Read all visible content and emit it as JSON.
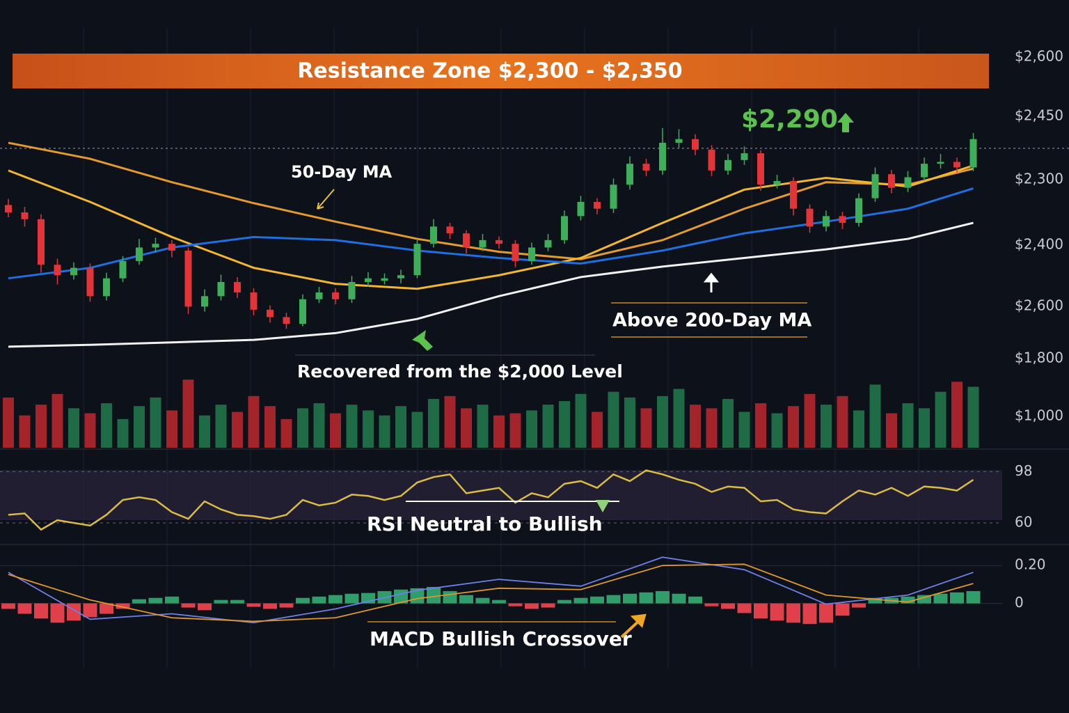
{
  "chart_data": [
    {
      "type": "candlestick",
      "annotations": {
        "resistance": "Resistance Zone $2,300 - $2,350",
        "price": "$2,290",
        "ma50": "50-Day MA",
        "above_ma200": "Above 200-Day MA",
        "recovered": "Recovered from the $2,000 Level"
      },
      "price_labels": [
        "$2,600",
        "$2,450",
        "$2,300",
        "$2,400",
        "$2,600",
        "$1,800",
        "$1,000"
      ],
      "ylim": [
        1940,
        2460
      ],
      "up_color": "#3fae5a",
      "down_color": "#e2353a",
      "candles": {
        "open": [
          2195,
          2183,
          2172,
          2098,
          2081,
          2093,
          2047,
          2076,
          2104,
          2126,
          2132,
          2121,
          2030,
          2047,
          2070,
          2053,
          2025,
          2013,
          2002,
          2042,
          2053,
          2042,
          2070,
          2072,
          2076,
          2081,
          2132,
          2160,
          2149,
          2126,
          2138,
          2132,
          2104,
          2126,
          2138,
          2177,
          2200,
          2189,
          2228,
          2262,
          2251,
          2296,
          2302,
          2285,
          2251,
          2268,
          2279,
          2228,
          2234,
          2189,
          2160,
          2177,
          2166,
          2206,
          2245,
          2223,
          2240,
          2262,
          2265,
          2256
        ],
        "high": [
          2205,
          2192,
          2180,
          2108,
          2102,
          2100,
          2085,
          2112,
          2140,
          2142,
          2138,
          2126,
          2058,
          2082,
          2078,
          2060,
          2032,
          2020,
          2050,
          2062,
          2060,
          2080,
          2086,
          2084,
          2090,
          2140,
          2172,
          2166,
          2154,
          2148,
          2144,
          2138,
          2134,
          2148,
          2186,
          2210,
          2206,
          2238,
          2274,
          2270,
          2320,
          2318,
          2310,
          2292,
          2278,
          2290,
          2284,
          2244,
          2240,
          2196,
          2186,
          2184,
          2214,
          2256,
          2252,
          2250,
          2272,
          2278,
          2272,
          2312
        ],
        "low": [
          2175,
          2160,
          2085,
          2066,
          2074,
          2038,
          2040,
          2070,
          2098,
          2118,
          2110,
          2018,
          2022,
          2040,
          2044,
          2016,
          2004,
          1994,
          1998,
          2036,
          2034,
          2036,
          2062,
          2066,
          2068,
          2076,
          2126,
          2140,
          2116,
          2120,
          2124,
          2094,
          2098,
          2120,
          2132,
          2170,
          2180,
          2182,
          2220,
          2242,
          2244,
          2288,
          2276,
          2242,
          2244,
          2260,
          2218,
          2222,
          2178,
          2150,
          2152,
          2156,
          2160,
          2200,
          2214,
          2216,
          2234,
          2254,
          2248,
          2250
        ],
        "close": [
          2183,
          2172,
          2098,
          2081,
          2093,
          2047,
          2076,
          2104,
          2126,
          2132,
          2121,
          2030,
          2047,
          2070,
          2053,
          2025,
          2013,
          2002,
          2042,
          2053,
          2042,
          2070,
          2076,
          2076,
          2081,
          2132,
          2160,
          2149,
          2126,
          2138,
          2132,
          2104,
          2126,
          2138,
          2177,
          2200,
          2189,
          2228,
          2262,
          2251,
          2296,
          2302,
          2285,
          2251,
          2268,
          2279,
          2228,
          2234,
          2189,
          2160,
          2177,
          2166,
          2206,
          2245,
          2223,
          2240,
          2262,
          2265,
          2256,
          2302
        ]
      },
      "series": [
        {
          "color": "#e39b2f",
          "x": [
            0,
            5,
            10,
            15,
            20,
            25,
            30,
            35,
            40,
            45,
            50,
            55,
            59
          ],
          "values": [
            2296,
            2270,
            2232,
            2198,
            2168,
            2140,
            2119,
            2107,
            2138,
            2189,
            2232,
            2228,
            2254
          ]
        },
        {
          "color": "#f2b632",
          "x": [
            0,
            5,
            10,
            15,
            20,
            25,
            30,
            35,
            40,
            45,
            50,
            55,
            59
          ],
          "values": [
            2251,
            2200,
            2143,
            2093,
            2067,
            2059,
            2081,
            2109,
            2166,
            2220,
            2239,
            2225,
            2259
          ]
        },
        {
          "color": "#1f6fe0",
          "x": [
            0,
            5,
            10,
            15,
            20,
            25,
            30,
            35,
            40,
            45,
            50,
            55,
            59
          ],
          "values": [
            2076,
            2093,
            2126,
            2143,
            2138,
            2121,
            2109,
            2100,
            2121,
            2149,
            2168,
            2189,
            2222
          ]
        },
        {
          "color": "#f2f2f2",
          "x": [
            0,
            5,
            10,
            15,
            20,
            25,
            30,
            35,
            40,
            45,
            50,
            55,
            59
          ],
          "values": [
            1965,
            1968,
            1972,
            1976,
            1987,
            2010,
            2047,
            2078,
            2095,
            2109,
            2123,
            2140,
            2166
          ]
        }
      ]
    },
    {
      "type": "bar",
      "ylim": [
        0,
        100
      ],
      "up_color": "#1f6b45",
      "down_color": "#a3242b",
      "values": [
        70,
        45,
        60,
        75,
        55,
        48,
        62,
        40,
        58,
        70,
        52,
        95,
        45,
        60,
        50,
        72,
        58,
        40,
        55,
        62,
        48,
        60,
        52,
        45,
        58,
        50,
        68,
        72,
        55,
        60,
        45,
        48,
        52,
        60,
        65,
        75,
        50,
        78,
        70,
        55,
        72,
        82,
        60,
        55,
        68,
        50,
        62,
        48,
        58,
        75,
        60,
        72,
        52,
        88,
        48,
        62,
        55,
        78,
        92,
        85
      ]
    },
    {
      "type": "line",
      "annotation": "RSI Neutral to Bullish",
      "ylim": [
        45,
        107
      ],
      "yticks": [
        60,
        98
      ],
      "color": "#d9bb45",
      "values": [
        66,
        67,
        55,
        62,
        60,
        58,
        66,
        77,
        79,
        77,
        68,
        63,
        76,
        70,
        66,
        65,
        63,
        66,
        77,
        73,
        75,
        81,
        80,
        77,
        80,
        90,
        94,
        96,
        82,
        84,
        86,
        75,
        82,
        79,
        89,
        91,
        86,
        96,
        91,
        99,
        96,
        92,
        89,
        83,
        87,
        86,
        76,
        77,
        70,
        68,
        67,
        76,
        84,
        81,
        86,
        80,
        87,
        86,
        84,
        92
      ]
    },
    {
      "type": "macd",
      "annotation": "MACD Bullish Crossover",
      "ylim": [
        -0.27,
        0.3
      ],
      "yticks": [
        {
          "value": 0.2,
          "label": "0.20"
        },
        0
      ],
      "up_color": "#2f9e6a",
      "down_color": "#e0404a",
      "histogram": [
        -0.029,
        -0.055,
        -0.08,
        -0.102,
        -0.091,
        -0.073,
        -0.055,
        -0.029,
        0.022,
        0.029,
        0.036,
        -0.022,
        -0.036,
        0.018,
        0.018,
        -0.018,
        -0.029,
        -0.022,
        0.029,
        0.036,
        0.044,
        0.051,
        0.055,
        0.065,
        0.073,
        0.08,
        0.087,
        0.065,
        0.044,
        0.029,
        0.018,
        -0.015,
        -0.029,
        -0.022,
        0.018,
        0.029,
        0.036,
        0.044,
        0.051,
        0.058,
        0.065,
        0.051,
        0.036,
        -0.015,
        -0.029,
        -0.051,
        -0.08,
        -0.091,
        -0.102,
        -0.109,
        -0.102,
        -0.065,
        -0.022,
        0.029,
        0.029,
        0.036,
        0.044,
        0.051,
        0.058,
        0.065
      ],
      "series": [
        {
          "color": "#6f7fe8",
          "x": [
            0,
            5,
            10,
            15,
            20,
            25,
            30,
            35,
            40,
            45,
            50,
            55,
            59
          ],
          "values": [
            0.164,
            -0.084,
            -0.055,
            -0.102,
            -0.029,
            0.069,
            0.127,
            0.091,
            0.244,
            0.178,
            -0.004,
            0.044,
            0.164
          ]
        },
        {
          "color": "#e0962e",
          "x": [
            0,
            5,
            10,
            15,
            20,
            25,
            30,
            35,
            40,
            45,
            50,
            55,
            59
          ],
          "values": [
            0.153,
            0.018,
            -0.076,
            -0.095,
            -0.076,
            0.025,
            0.08,
            0.073,
            0.2,
            0.207,
            0.044,
            0.007,
            0.105
          ]
        }
      ]
    }
  ]
}
